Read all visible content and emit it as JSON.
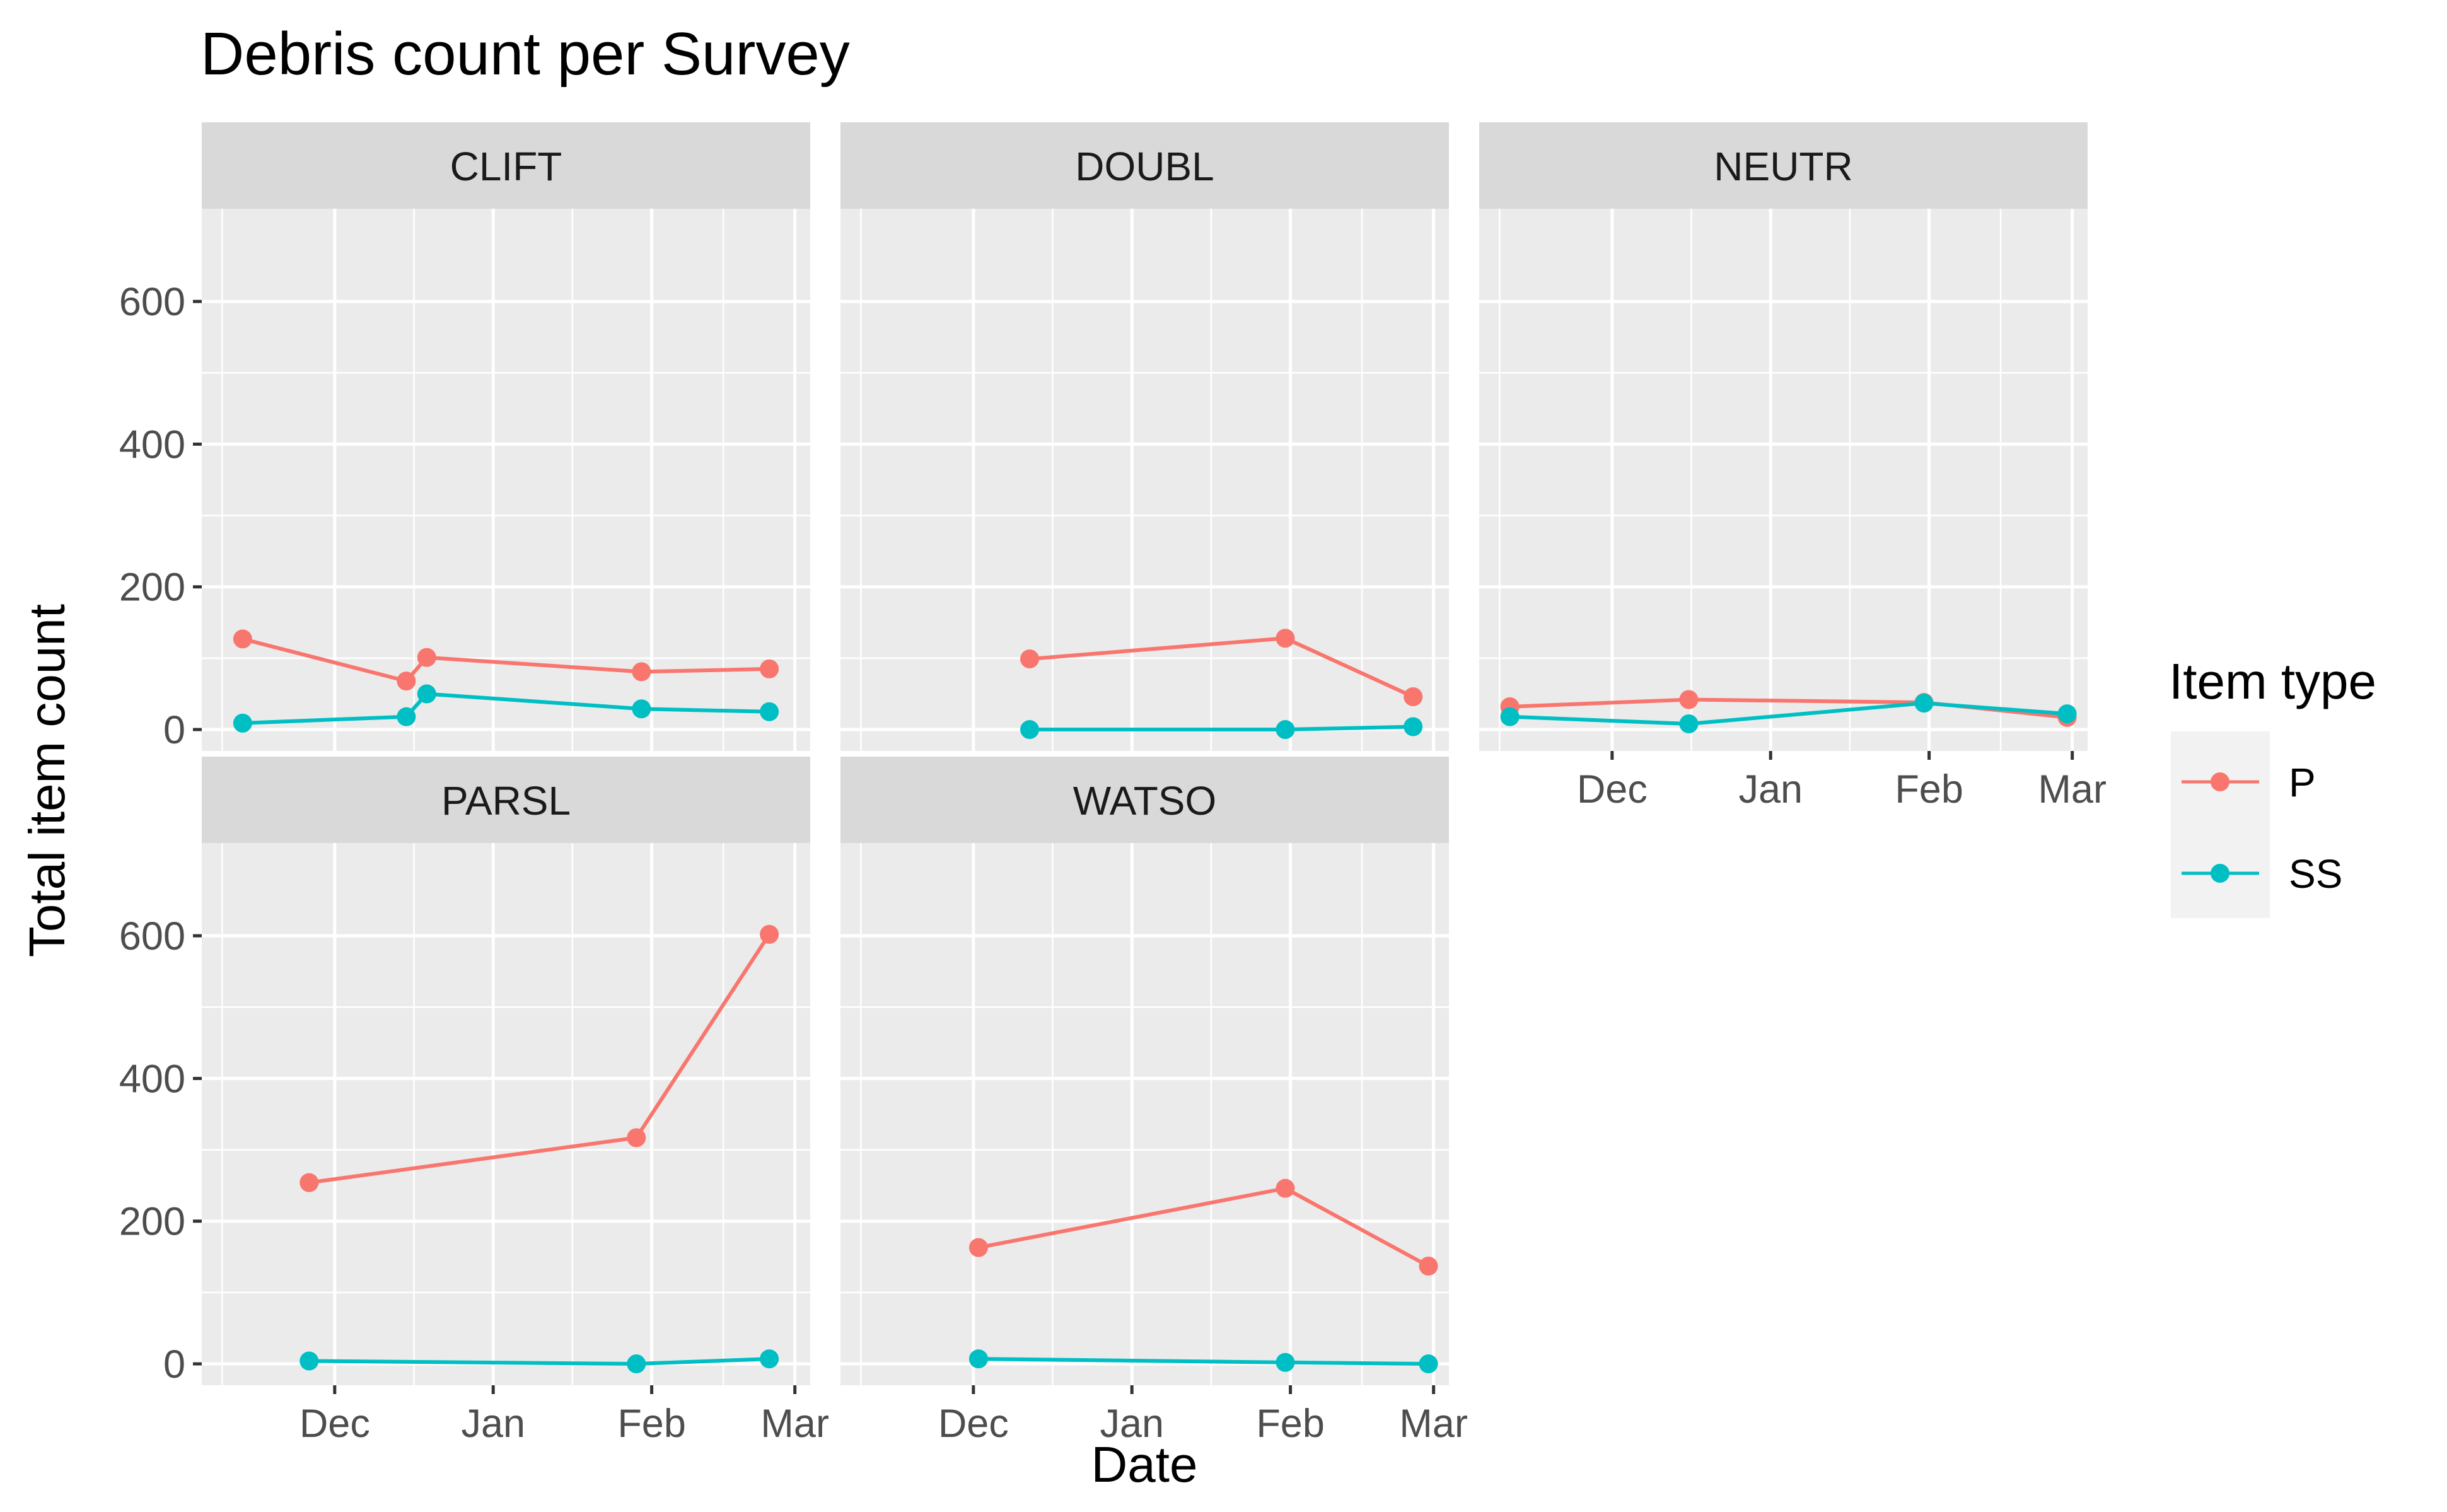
{
  "chart_data": {
    "type": "line",
    "title": "Debris count per Survey",
    "xlabel": "Date",
    "ylabel": "Total item count",
    "ylim": [
      -30,
      730
    ],
    "y_ticks": [
      0,
      200,
      400,
      600
    ],
    "x_ticks": [
      {
        "label": "Dec",
        "date": "2020-12-01"
      },
      {
        "label": "Jan",
        "date": "2021-01-01"
      },
      {
        "label": "Feb",
        "date": "2021-02-01"
      },
      {
        "label": "Mar",
        "date": "2021-03-01"
      }
    ],
    "xlim": [
      "2020-11-05",
      "2021-03-04"
    ],
    "grid": true,
    "legend": {
      "title": "Item type",
      "position": "right",
      "entries": [
        {
          "name": "P",
          "color": "#F8766D"
        },
        {
          "name": "SS",
          "color": "#00BFC4"
        }
      ]
    },
    "colors": {
      "panel_bg": "#EBEBEB",
      "strip_bg": "#D9D9D9",
      "grid": "#FFFFFF",
      "P": "#F8766D",
      "SS": "#00BFC4"
    },
    "panels": [
      {
        "name": "CLIFT",
        "series": [
          {
            "name": "P",
            "points": [
              [
                "2020-11-13",
                127
              ],
              [
                "2020-12-15",
                68
              ],
              [
                "2020-12-19",
                101
              ],
              [
                "2021-01-30",
                81
              ],
              [
                "2021-02-24",
                85
              ]
            ]
          },
          {
            "name": "SS",
            "points": [
              [
                "2020-11-13",
                9
              ],
              [
                "2020-12-15",
                18
              ],
              [
                "2020-12-19",
                50
              ],
              [
                "2021-01-30",
                29
              ],
              [
                "2021-02-24",
                25
              ]
            ]
          }
        ]
      },
      {
        "name": "DOUBL",
        "series": [
          {
            "name": "P",
            "points": [
              [
                "2020-12-12",
                99
              ],
              [
                "2021-01-31",
                128
              ],
              [
                "2021-02-25",
                46
              ]
            ]
          },
          {
            "name": "SS",
            "points": [
              [
                "2020-12-12",
                0
              ],
              [
                "2021-01-31",
                0
              ],
              [
                "2021-02-25",
                4
              ]
            ]
          }
        ]
      },
      {
        "name": "NEUTR",
        "series": [
          {
            "name": "P",
            "points": [
              [
                "2020-11-11",
                32
              ],
              [
                "2020-12-16",
                42
              ],
              [
                "2021-01-31",
                38
              ],
              [
                "2021-02-28",
                17
              ]
            ]
          },
          {
            "name": "SS",
            "points": [
              [
                "2020-11-11",
                18
              ],
              [
                "2020-12-16",
                8
              ],
              [
                "2021-01-31",
                37
              ],
              [
                "2021-02-28",
                22
              ]
            ]
          }
        ]
      },
      {
        "name": "PARSL",
        "series": [
          {
            "name": "P",
            "points": [
              [
                "2020-11-26",
                254
              ],
              [
                "2021-01-29",
                317
              ],
              [
                "2021-02-24",
                602
              ]
            ]
          },
          {
            "name": "SS",
            "points": [
              [
                "2020-11-26",
                4
              ],
              [
                "2021-01-29",
                0
              ],
              [
                "2021-02-24",
                7
              ]
            ]
          }
        ]
      },
      {
        "name": "WATSO",
        "series": [
          {
            "name": "P",
            "points": [
              [
                "2020-12-02",
                163
              ],
              [
                "2021-01-31",
                246
              ],
              [
                "2021-02-28",
                137
              ]
            ]
          },
          {
            "name": "SS",
            "points": [
              [
                "2020-12-02",
                7
              ],
              [
                "2021-01-31",
                2
              ],
              [
                "2021-02-28",
                0
              ]
            ]
          }
        ]
      }
    ]
  }
}
